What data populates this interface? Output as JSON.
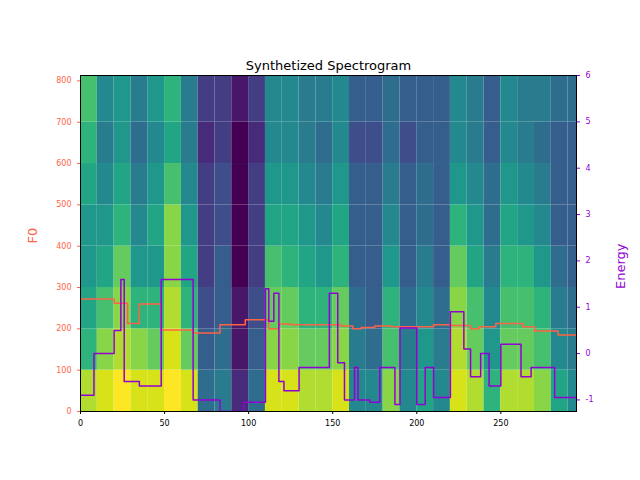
{
  "chart_data": {
    "type": "line",
    "title": "Synthetized Spectrogram",
    "y_label": "F0",
    "y2_label": "Energy",
    "xlim": [
      0,
      295
    ],
    "xticks": [
      0,
      50,
      100,
      150,
      200,
      250
    ],
    "ylim": [
      0,
      813
    ],
    "yticks": [
      0,
      100,
      200,
      300,
      400,
      500,
      600,
      700,
      800
    ],
    "y2lim": [
      -1.25,
      6.0
    ],
    "y2ticks": [
      -1,
      0,
      1,
      2,
      3,
      4,
      5,
      6
    ],
    "series": [
      {
        "type": "line",
        "line_style": "steps",
        "color": "tomato",
        "x": [
          0,
          20,
          25,
          28,
          35,
          48,
          67,
          83,
          98,
          112,
          118,
          125,
          155,
          162,
          167,
          175,
          185,
          200,
          210,
          220,
          232,
          237,
          247,
          263,
          270,
          284,
          295
        ],
        "values": [
          272,
          262,
          262,
          213,
          260,
          197,
          190,
          210,
          222,
          200,
          212,
          210,
          207,
          200,
          203,
          207,
          205,
          205,
          210,
          208,
          200,
          205,
          213,
          205,
          195,
          185,
          185
        ]
      },
      {
        "type": "line",
        "line_style": "steps",
        "color": "#9400d3",
        "axis": "y2",
        "x": [
          0,
          8,
          20,
          24,
          26,
          28,
          35,
          48,
          67,
          83,
          97,
          110,
          112,
          115,
          118,
          121,
          130,
          148,
          153,
          157,
          163,
          165,
          172,
          178,
          187,
          190,
          200,
          205,
          210,
          220,
          228,
          232,
          238,
          243,
          250,
          262,
          268,
          282,
          295
        ],
        "values": [
          -0.9,
          0,
          0.5,
          1.6,
          -0.6,
          -0.6,
          -0.7,
          1.6,
          -1.0,
          -1.25,
          -1.05,
          1.4,
          0.7,
          1.3,
          -0.6,
          -0.8,
          -0.3,
          1.3,
          -0.2,
          -1.0,
          -0.3,
          -1.0,
          -1.05,
          -0.3,
          -1.1,
          0.55,
          -1.1,
          -0.3,
          -0.95,
          0.9,
          0.1,
          -0.5,
          0.0,
          -0.7,
          0.2,
          -0.5,
          -0.3,
          -0.95,
          -0.95
        ]
      }
    ],
    "heatmap": {
      "x_bins": [
        0,
        10,
        20,
        30,
        40,
        50,
        60,
        70,
        80,
        90,
        100,
        110,
        120,
        130,
        140,
        150,
        160,
        170,
        180,
        190,
        200,
        210,
        220,
        230,
        240,
        250,
        260,
        270,
        280,
        290,
        295
      ],
      "y_bins": [
        0,
        100,
        200,
        300,
        400,
        500,
        600,
        700,
        813
      ],
      "cells": [
        [
          0.8,
          0.85,
          0.9,
          0.85,
          0.85,
          0.9,
          0.85,
          0.35,
          0.4,
          0.15,
          0.35,
          0.85,
          0.85,
          0.8,
          0.8,
          0.85,
          0.45,
          0.45,
          0.75,
          0.45,
          0.55,
          0.45,
          0.85,
          0.8,
          0.6,
          0.8,
          0.8,
          0.75,
          0.55,
          0.45
        ],
        [
          0.6,
          0.75,
          0.8,
          0.75,
          0.7,
          0.85,
          0.7,
          0.3,
          0.35,
          0.1,
          0.3,
          0.75,
          0.75,
          0.7,
          0.7,
          0.75,
          0.4,
          0.35,
          0.65,
          0.4,
          0.5,
          0.4,
          0.8,
          0.7,
          0.5,
          0.7,
          0.7,
          0.65,
          0.45,
          0.4
        ],
        [
          0.55,
          0.65,
          0.75,
          0.6,
          0.6,
          0.8,
          0.6,
          0.25,
          0.3,
          0.1,
          0.25,
          0.7,
          0.7,
          0.6,
          0.6,
          0.7,
          0.35,
          0.3,
          0.6,
          0.35,
          0.45,
          0.35,
          0.75,
          0.65,
          0.45,
          0.65,
          0.65,
          0.6,
          0.4,
          0.35
        ],
        [
          0.5,
          0.55,
          0.7,
          0.5,
          0.5,
          0.75,
          0.55,
          0.2,
          0.3,
          0.05,
          0.2,
          0.65,
          0.6,
          0.55,
          0.5,
          0.6,
          0.3,
          0.3,
          0.5,
          0.3,
          0.4,
          0.3,
          0.7,
          0.55,
          0.4,
          0.6,
          0.6,
          0.5,
          0.35,
          0.3
        ],
        [
          0.5,
          0.5,
          0.6,
          0.45,
          0.55,
          0.75,
          0.5,
          0.2,
          0.25,
          0.05,
          0.2,
          0.55,
          0.55,
          0.5,
          0.45,
          0.55,
          0.3,
          0.3,
          0.45,
          0.3,
          0.35,
          0.3,
          0.6,
          0.5,
          0.35,
          0.55,
          0.5,
          0.45,
          0.3,
          0.3
        ],
        [
          0.55,
          0.45,
          0.55,
          0.4,
          0.5,
          0.65,
          0.45,
          0.2,
          0.25,
          0.05,
          0.2,
          0.5,
          0.5,
          0.45,
          0.4,
          0.5,
          0.3,
          0.3,
          0.4,
          0.3,
          0.35,
          0.3,
          0.5,
          0.45,
          0.35,
          0.5,
          0.45,
          0.4,
          0.3,
          0.3
        ],
        [
          0.6,
          0.4,
          0.5,
          0.35,
          0.45,
          0.55,
          0.4,
          0.15,
          0.2,
          0.05,
          0.15,
          0.45,
          0.45,
          0.4,
          0.35,
          0.45,
          0.25,
          0.25,
          0.35,
          0.25,
          0.3,
          0.3,
          0.45,
          0.4,
          0.3,
          0.45,
          0.4,
          0.35,
          0.3,
          0.3
        ],
        [
          0.65,
          0.45,
          0.5,
          0.4,
          0.5,
          0.6,
          0.4,
          0.2,
          0.2,
          0.1,
          0.2,
          0.45,
          0.45,
          0.4,
          0.4,
          0.45,
          0.3,
          0.3,
          0.35,
          0.3,
          0.3,
          0.3,
          0.45,
          0.4,
          0.3,
          0.45,
          0.4,
          0.4,
          0.35,
          0.35
        ]
      ]
    }
  }
}
